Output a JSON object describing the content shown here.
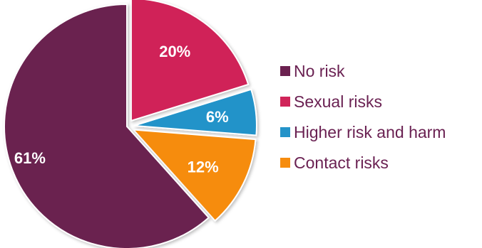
{
  "chart_data": {
    "type": "pie",
    "categories": [
      "No risk",
      "Sexual risks",
      "Higher risk and harm",
      "Contact risks"
    ],
    "values": [
      61,
      20,
      6,
      12
    ],
    "data_labels": [
      "61%",
      "20%",
      "6%",
      "12%"
    ],
    "colors": [
      "#6b2150",
      "#d02459",
      "#2493c9",
      "#f68c0e"
    ],
    "exploded": [
      "Sexual risks",
      "Higher risk and harm",
      "Contact risks"
    ],
    "start_slice": "Sexual risks",
    "direction": "clockwise",
    "legend": {
      "placement": "right",
      "entries": [
        "No risk",
        "Sexual risks",
        "Higher risk and harm",
        "Contact risks"
      ]
    }
  }
}
